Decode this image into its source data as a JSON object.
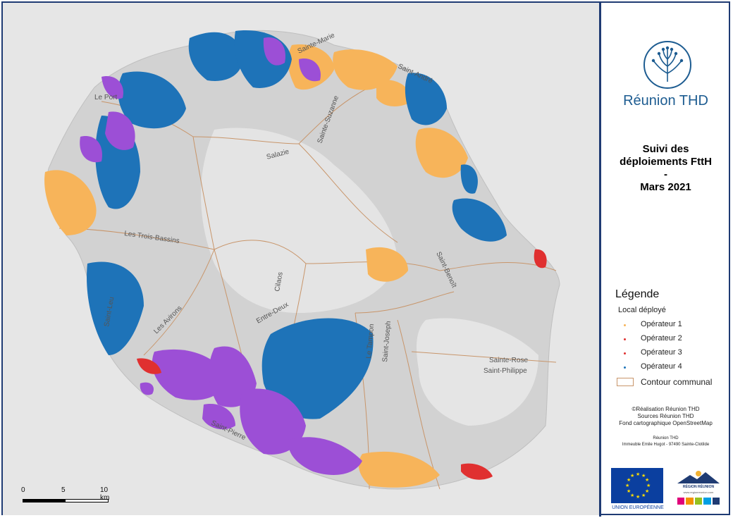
{
  "title": {
    "line1": "Suivi des",
    "line2": "déploiements FttH",
    "line3": "-",
    "line4": "Mars 2021"
  },
  "logo": {
    "text": "Réunion THD",
    "color": "#1d5c91"
  },
  "legend": {
    "title": "Légende",
    "subtitle": "Local déployé",
    "items": [
      {
        "label": "Opérateur 1",
        "color": "#f7b45a"
      },
      {
        "label": "Opérateur 2",
        "color": "#e03030"
      },
      {
        "label": "Opérateur 3",
        "color": "#9c4fd6"
      },
      {
        "label": "Opérateur 4",
        "color": "#1e73b8"
      }
    ],
    "boundary_label": "Contour communal",
    "boundary_color": "#c8956a"
  },
  "credits": {
    "line1": "©Réalisation Réunion THD",
    "line2": "Sources Réunion THD",
    "line3": "Fond cartographique OpenStreetMap",
    "line4": "Réunion THD",
    "line5": "Immeuble Emile Hugot - 97490 Sainte-Clotilde"
  },
  "logos": {
    "eu_label": "UNION EUROPÉENNE",
    "region_label": "RÉGION RÉUNION",
    "region_url": "www.regionreunion.com"
  },
  "scale": {
    "ticks": [
      "0",
      "5",
      "10 km"
    ]
  },
  "communes": [
    "Le Port",
    "Sainte-Marie",
    "Sainte-Suzanne",
    "Saint-André",
    "Salazie",
    "Les Trois-Bassins",
    "Cilaos",
    "Saint-Benoît",
    "Les Avirons",
    "Entre-Deux",
    "Le Tampon",
    "Saint-Joseph",
    "Sainte-Rose",
    "Saint-Philippe",
    "Saint-Leu",
    "Saint-Pierre"
  ],
  "colors": {
    "island": "#d2d2d2",
    "sea": "#e6e6e6",
    "frame": "#1f3b73"
  }
}
